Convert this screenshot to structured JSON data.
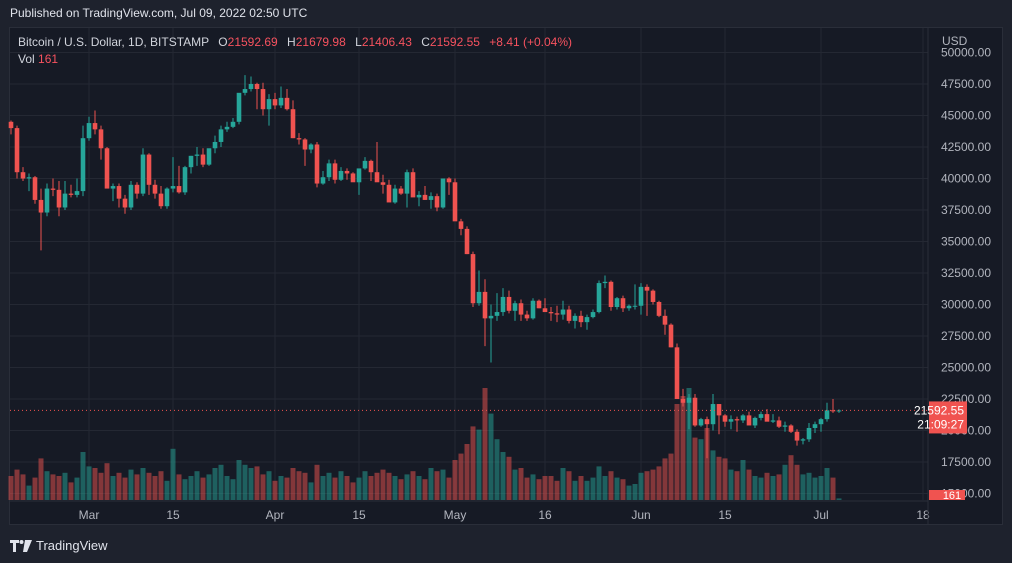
{
  "header": {
    "published": "Published on TradingView.com, Jul 09, 2022 02:50 UTC"
  },
  "legend": {
    "symbol": "Bitcoin / U.S. Dollar, 1D, BITSTAMP",
    "open_label": "O",
    "open": "21592.69",
    "high_label": "H",
    "high": "21679.98",
    "low_label": "L",
    "low": "21406.43",
    "close_label": "C",
    "close": "21592.55",
    "change": "+8.41 (+0.04%)",
    "vol_label": "Vol",
    "vol": "161"
  },
  "brand": {
    "name": "TradingView"
  },
  "colors": {
    "up": "#26a69a",
    "down": "#ef5350",
    "bg": "#161a25",
    "grid": "#242833",
    "axis_text": "#b2b5be",
    "badge": "#f05350"
  },
  "chart_data": {
    "type": "candlestick",
    "title": "Bitcoin / U.S. Dollar, 1D, BITSTAMP",
    "currency_label": "USD",
    "ylim": [
      16500,
      50500
    ],
    "y_ticks": [
      "50000.00",
      "47500.00",
      "45000.00",
      "42500.00",
      "40000.00",
      "37500.00",
      "35000.00",
      "32500.00",
      "30000.00",
      "27500.00",
      "25000.00",
      "22500.00",
      "20000.00",
      "17500.00",
      "15000.00"
    ],
    "x_ticks": [
      {
        "label": "Mar",
        "day": 13
      },
      {
        "label": "15",
        "day": 27
      },
      {
        "label": "Apr",
        "day": 44
      },
      {
        "label": "15",
        "day": 58
      },
      {
        "label": "May",
        "day": 74
      },
      {
        "label": "16",
        "day": 89
      },
      {
        "label": "Jun",
        "day": 105
      },
      {
        "label": "15",
        "day": 119
      },
      {
        "label": "Jul",
        "day": 135
      },
      {
        "label": "18",
        "day": 152
      }
    ],
    "last_price": {
      "value": "21592.55",
      "countdown": "21:09:27",
      "price": 21592.55
    },
    "last_volume": "161",
    "start_date": "2022-02-16",
    "candles": [
      [
        44500,
        44600,
        43500,
        44000,
        30
      ],
      [
        44000,
        44200,
        40000,
        40500,
        38
      ],
      [
        40500,
        40900,
        39800,
        40000,
        32
      ],
      [
        40000,
        40400,
        39000,
        40100,
        18
      ],
      [
        40100,
        40200,
        38000,
        38300,
        28
      ],
      [
        38300,
        39200,
        34300,
        37300,
        52
      ],
      [
        37300,
        39600,
        37000,
        39200,
        36
      ],
      [
        39200,
        40000,
        38600,
        39100,
        32
      ],
      [
        39100,
        39800,
        37000,
        37700,
        30
      ],
      [
        37700,
        39800,
        37500,
        38800,
        34
      ],
      [
        38800,
        39500,
        38500,
        38700,
        22
      ],
      [
        38700,
        40000,
        38500,
        39000,
        28
      ],
      [
        39000,
        44200,
        38600,
        43200,
        60
      ],
      [
        43200,
        44900,
        43000,
        44400,
        42
      ],
      [
        44400,
        45400,
        43500,
        43900,
        40
      ],
      [
        43900,
        44200,
        41500,
        42400,
        34
      ],
      [
        42400,
        42500,
        40000,
        39200,
        46
      ],
      [
        39200,
        39600,
        38200,
        39400,
        30
      ],
      [
        39400,
        39600,
        37700,
        38400,
        34
      ],
      [
        38400,
        38700,
        37200,
        37700,
        28
      ],
      [
        37700,
        39800,
        37500,
        39500,
        38
      ],
      [
        39500,
        39700,
        38400,
        38800,
        32
      ],
      [
        38800,
        42400,
        38600,
        41900,
        40
      ],
      [
        41900,
        42000,
        38700,
        39500,
        34
      ],
      [
        39500,
        39900,
        38400,
        38800,
        30
      ],
      [
        38800,
        39400,
        37600,
        37800,
        36
      ],
      [
        37800,
        39300,
        37600,
        39200,
        24
      ],
      [
        39200,
        41700,
        38900,
        39400,
        64
      ],
      [
        39400,
        41000,
        38800,
        38900,
        32
      ],
      [
        38900,
        41000,
        38700,
        40900,
        26
      ],
      [
        40900,
        41800,
        40400,
        41800,
        30
      ],
      [
        41800,
        42500,
        41000,
        41900,
        36
      ],
      [
        41900,
        42400,
        40900,
        41100,
        28
      ],
      [
        41100,
        42300,
        41000,
        42400,
        32
      ],
      [
        42400,
        43400,
        42000,
        42900,
        40
      ],
      [
        42900,
        44200,
        42500,
        43900,
        44
      ],
      [
        43900,
        44500,
        43700,
        44100,
        30
      ],
      [
        44100,
        44800,
        44000,
        44500,
        26
      ],
      [
        44500,
        46700,
        44300,
        46800,
        50
      ],
      [
        46800,
        48200,
        46600,
        47100,
        44
      ],
      [
        47100,
        48100,
        46900,
        47500,
        40
      ],
      [
        47500,
        47600,
        45500,
        47100,
        42
      ],
      [
        47100,
        47600,
        45000,
        45500,
        32
      ],
      [
        45500,
        46700,
        44200,
        46300,
        36
      ],
      [
        46300,
        46800,
        45500,
        45800,
        24
      ],
      [
        45800,
        47300,
        45600,
        46400,
        30
      ],
      [
        46400,
        47100,
        45400,
        45500,
        28
      ],
      [
        45500,
        46200,
        43200,
        43200,
        40
      ],
      [
        43200,
        43600,
        42700,
        43100,
        36
      ],
      [
        43100,
        43200,
        41000,
        42300,
        34
      ],
      [
        42300,
        42800,
        42000,
        42700,
        22
      ],
      [
        42700,
        42900,
        39300,
        39600,
        44
      ],
      [
        39600,
        40600,
        39500,
        40100,
        30
      ],
      [
        40100,
        41500,
        39800,
        41200,
        34
      ],
      [
        41200,
        41500,
        39600,
        39900,
        28
      ],
      [
        39900,
        40900,
        39800,
        40600,
        36
      ],
      [
        40600,
        40800,
        39900,
        40400,
        30
      ],
      [
        40400,
        40500,
        39800,
        39700,
        22
      ],
      [
        39700,
        40200,
        38700,
        40800,
        28
      ],
      [
        40800,
        41700,
        40700,
        41400,
        36
      ],
      [
        41400,
        41500,
        39800,
        40500,
        30
      ],
      [
        40500,
        42900,
        40200,
        39700,
        34
      ],
      [
        39700,
        40300,
        38800,
        39500,
        38
      ],
      [
        39500,
        39900,
        38200,
        38100,
        34
      ],
      [
        38100,
        39500,
        38000,
        39200,
        30
      ],
      [
        39200,
        39400,
        38700,
        38800,
        26
      ],
      [
        38800,
        40700,
        37700,
        40500,
        32
      ],
      [
        40500,
        40800,
        38900,
        38500,
        36
      ],
      [
        38500,
        39000,
        37800,
        38700,
        30
      ],
      [
        38700,
        39400,
        38300,
        38300,
        26
      ],
      [
        38300,
        38900,
        37600,
        38600,
        40
      ],
      [
        38600,
        38800,
        37400,
        37700,
        36
      ],
      [
        37700,
        39500,
        37600,
        40000,
        38
      ],
      [
        40000,
        40100,
        38700,
        39700,
        28
      ],
      [
        39700,
        40000,
        37500,
        36600,
        50
      ],
      [
        36600,
        36800,
        35500,
        36000,
        58
      ],
      [
        36000,
        36200,
        34000,
        34000,
        70
      ],
      [
        34000,
        34200,
        29800,
        30100,
        92
      ],
      [
        30100,
        32700,
        29900,
        31000,
        88
      ],
      [
        31000,
        32000,
        26700,
        28900,
        140
      ],
      [
        28900,
        30000,
        25400,
        29100,
        108
      ],
      [
        29100,
        30900,
        28700,
        29400,
        76
      ],
      [
        29400,
        31300,
        29100,
        30600,
        60
      ],
      [
        30600,
        31100,
        29300,
        29500,
        54
      ],
      [
        29500,
        30300,
        28700,
        30100,
        38
      ],
      [
        30100,
        30400,
        28700,
        29200,
        40
      ],
      [
        29200,
        29500,
        28700,
        28900,
        28
      ],
      [
        28900,
        30500,
        28800,
        30300,
        32
      ],
      [
        30300,
        30400,
        29700,
        29700,
        26
      ],
      [
        29700,
        30500,
        29500,
        29400,
        30
      ],
      [
        29400,
        29800,
        28700,
        29300,
        30
      ],
      [
        29300,
        29900,
        28600,
        29200,
        24
      ],
      [
        29200,
        30300,
        28800,
        29600,
        40
      ],
      [
        29600,
        29900,
        28500,
        28700,
        36
      ],
      [
        28700,
        29300,
        28100,
        29100,
        24
      ],
      [
        29100,
        29500,
        28200,
        28600,
        30
      ],
      [
        28600,
        29200,
        28000,
        29000,
        24
      ],
      [
        29000,
        29600,
        28900,
        29400,
        28
      ],
      [
        29400,
        31900,
        29300,
        31700,
        42
      ],
      [
        31700,
        32300,
        31300,
        31800,
        30
      ],
      [
        31800,
        31900,
        29500,
        29800,
        36
      ],
      [
        29800,
        30600,
        29600,
        30500,
        28
      ],
      [
        30500,
        30700,
        29400,
        29700,
        26
      ],
      [
        29700,
        30000,
        29500,
        29900,
        18
      ],
      [
        29900,
        31600,
        29600,
        29900,
        20
      ],
      [
        29900,
        31700,
        29200,
        31400,
        34
      ],
      [
        31400,
        31600,
        29100,
        31100,
        36
      ],
      [
        31100,
        31200,
        30000,
        30200,
        38
      ],
      [
        30200,
        30300,
        29000,
        29100,
        42
      ],
      [
        29100,
        29600,
        27600,
        28400,
        52
      ],
      [
        28400,
        28500,
        26600,
        26600,
        58
      ],
      [
        26600,
        26900,
        22700,
        22500,
        120
      ],
      [
        22500,
        23300,
        21900,
        22200,
        130
      ],
      [
        22200,
        22900,
        20100,
        22600,
        140
      ],
      [
        22600,
        22900,
        20300,
        20400,
        78
      ],
      [
        20400,
        21000,
        20300,
        20900,
        76
      ],
      [
        20900,
        21100,
        17800,
        20500,
        90
      ],
      [
        20500,
        22900,
        20000,
        22100,
        62
      ],
      [
        22100,
        22100,
        19700,
        21200,
        54
      ],
      [
        21200,
        21300,
        20300,
        20700,
        52
      ],
      [
        20700,
        21200,
        20100,
        20900,
        38
      ],
      [
        20900,
        21100,
        19900,
        20800,
        36
      ],
      [
        20800,
        21300,
        20600,
        21200,
        50
      ],
      [
        21200,
        21500,
        20700,
        20400,
        38
      ],
      [
        20400,
        21100,
        20200,
        21000,
        30
      ],
      [
        21000,
        21500,
        20800,
        21300,
        28
      ],
      [
        21300,
        21700,
        20800,
        20700,
        34
      ],
      [
        20700,
        21300,
        20600,
        20800,
        30
      ],
      [
        20800,
        21100,
        20200,
        20300,
        32
      ],
      [
        20300,
        20700,
        19900,
        20400,
        44
      ],
      [
        20400,
        20500,
        19800,
        19900,
        56
      ],
      [
        19900,
        20100,
        18800,
        19200,
        44
      ],
      [
        19200,
        19400,
        18900,
        19300,
        32
      ],
      [
        19300,
        20600,
        19100,
        20200,
        34
      ],
      [
        20200,
        20700,
        19800,
        20500,
        28
      ],
      [
        20500,
        21000,
        19900,
        20900,
        30
      ],
      [
        20900,
        22200,
        20700,
        21600,
        40
      ],
      [
        21600,
        22500,
        21400,
        21590,
        28
      ],
      [
        21590,
        21680,
        21400,
        21592,
        2
      ]
    ]
  }
}
